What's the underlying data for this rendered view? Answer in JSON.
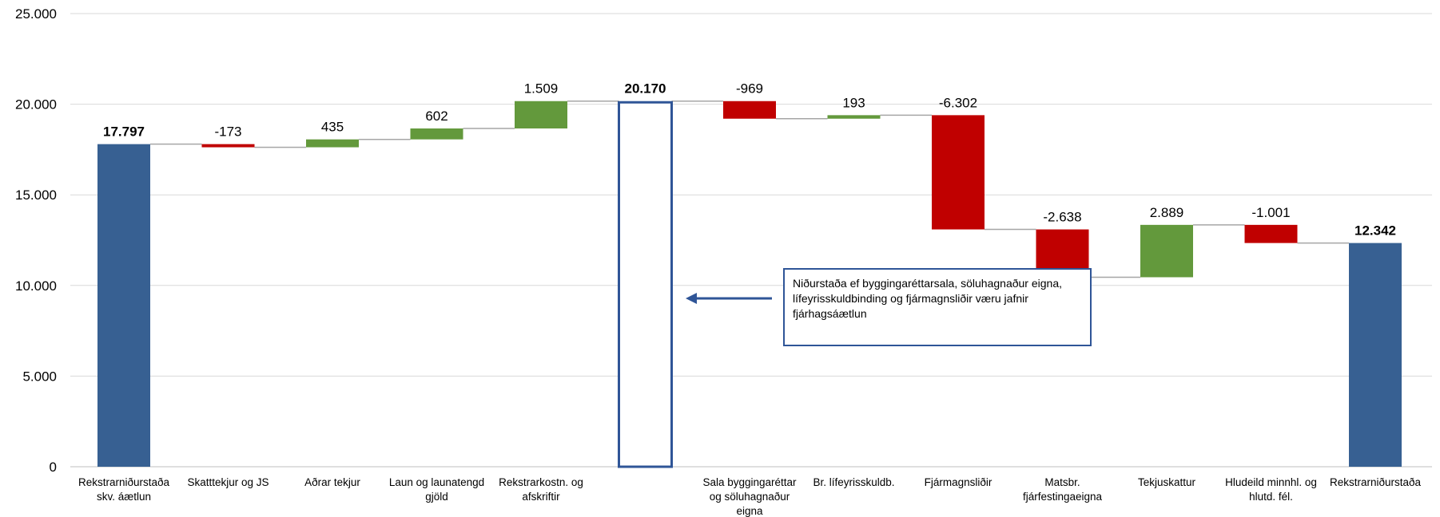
{
  "chart_data": {
    "type": "waterfall",
    "ylim": [
      0,
      25000
    ],
    "yticks": [
      0,
      5000,
      10000,
      15000,
      20000,
      25000
    ],
    "ytick_labels": [
      "0",
      "5.000",
      "10.000",
      "15.000",
      "20.000",
      "25.000"
    ],
    "grid": true,
    "colors": {
      "total": "#376092",
      "increase": "#63993C",
      "decrease": "#C00000",
      "outline_total": "#2F5597",
      "connector": "#A6A6A6",
      "grid": "#D9D9D9"
    },
    "bars": [
      {
        "category": "Rekstrarniðurstaða skv. áætlun",
        "kind": "total",
        "value": 17797,
        "label": "17.797",
        "bold": true
      },
      {
        "category": "Skatttekjur og JS",
        "kind": "delta",
        "value": -173,
        "label": "-173",
        "bold": false
      },
      {
        "category": "Aðrar tekjur",
        "kind": "delta",
        "value": 435,
        "label": "435",
        "bold": false
      },
      {
        "category": "Laun og launatengd gjöld",
        "kind": "delta",
        "value": 602,
        "label": "602",
        "bold": false
      },
      {
        "category": "Rekstrarkostn. og afskriftir",
        "kind": "delta",
        "value": 1509,
        "label": "1.509",
        "bold": false
      },
      {
        "category": "",
        "kind": "outline-total",
        "value": 20170,
        "label": "20.170",
        "bold": true
      },
      {
        "category": "Sala byggingaréttar og söluhagnaður eigna",
        "kind": "delta",
        "value": -969,
        "label": "-969",
        "bold": false
      },
      {
        "category": "Br. lífeyrisskuldb.",
        "kind": "delta",
        "value": 193,
        "label": "193",
        "bold": false
      },
      {
        "category": "Fjármagnsliðir",
        "kind": "delta",
        "value": -6302,
        "label": "-6.302",
        "bold": false
      },
      {
        "category": "Matsbr. fjárfestingaeigna",
        "kind": "delta",
        "value": -2638,
        "label": "-2.638",
        "bold": false
      },
      {
        "category": "Tekjuskattur",
        "kind": "delta",
        "value": 2889,
        "label": "2.889",
        "bold": false
      },
      {
        "category": "Hludeild minnhl. og hlutd. fél.",
        "kind": "delta",
        "value": -1001,
        "label": "-1.001",
        "bold": false
      },
      {
        "category": "Rekstrarniðurstaða",
        "kind": "total",
        "value": 12342,
        "label": "12.342",
        "bold": true
      }
    ]
  },
  "annotation": {
    "text": "Niðurstaða ef byggingaréttarsala, söluhagnaður eigna, lífeyrisskuldbinding og fjármagnsliðir væru jafnir fjárhagsáætlun"
  }
}
